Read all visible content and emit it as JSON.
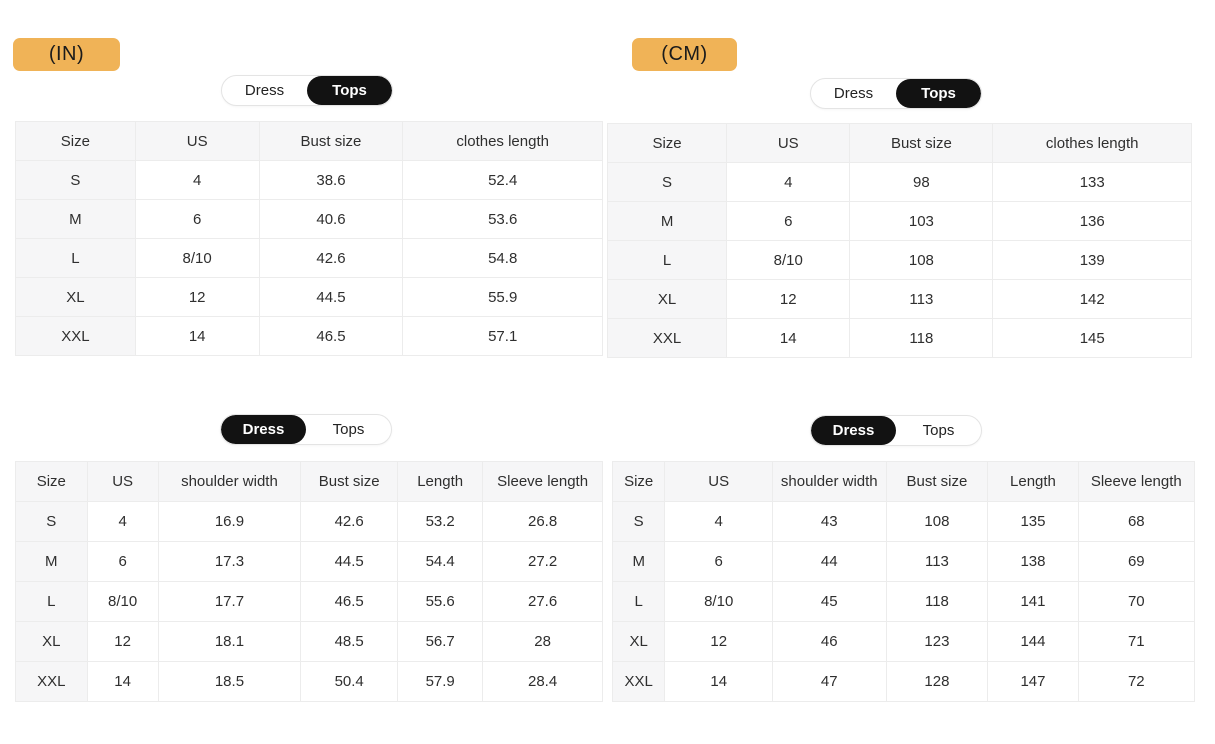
{
  "badges": {
    "in_label": "(IN)",
    "cm_label": "(CM)",
    "bg_color": "#F0B357"
  },
  "toggle": {
    "dress_label": "Dress",
    "tops_label": "Tops",
    "selected_bg": "#121212"
  },
  "sections": {
    "in_tops": {
      "unit": "(IN)",
      "selected_tab": "Tops",
      "table": {
        "headers": [
          "Size",
          "US",
          "Bust size",
          "clothes length"
        ],
        "rows": [
          [
            "S",
            "4",
            "38.6",
            "52.4"
          ],
          [
            "M",
            "6",
            "40.6",
            "53.6"
          ],
          [
            "L",
            "8/10",
            "42.6",
            "54.8"
          ],
          [
            "XL",
            "12",
            "44.5",
            "55.9"
          ],
          [
            "XXL",
            "14",
            "46.5",
            "57.1"
          ]
        ]
      }
    },
    "cm_tops": {
      "unit": "(CM)",
      "selected_tab": "Tops",
      "table": {
        "headers": [
          "Size",
          "US",
          "Bust size",
          "clothes length"
        ],
        "rows": [
          [
            "S",
            "4",
            "98",
            "133"
          ],
          [
            "M",
            "6",
            "103",
            "136"
          ],
          [
            "L",
            "8/10",
            "108",
            "139"
          ],
          [
            "XL",
            "12",
            "113",
            "142"
          ],
          [
            "XXL",
            "14",
            "118",
            "145"
          ]
        ]
      }
    },
    "in_dress": {
      "unit": "(IN)",
      "selected_tab": "Dress",
      "table": {
        "headers": [
          "Size",
          "US",
          "shoulder width",
          "Bust size",
          "Length",
          "Sleeve length"
        ],
        "rows": [
          [
            "S",
            "4",
            "16.9",
            "42.6",
            "53.2",
            "26.8"
          ],
          [
            "M",
            "6",
            "17.3",
            "44.5",
            "54.4",
            "27.2"
          ],
          [
            "L",
            "8/10",
            "17.7",
            "46.5",
            "55.6",
            "27.6"
          ],
          [
            "XL",
            "12",
            "18.1",
            "48.5",
            "56.7",
            "28"
          ],
          [
            "XXL",
            "14",
            "18.5",
            "50.4",
            "57.9",
            "28.4"
          ]
        ]
      }
    },
    "cm_dress": {
      "unit": "(CM)",
      "selected_tab": "Dress",
      "table": {
        "headers": [
          "Size",
          "US",
          "shoulder width",
          "Bust size",
          "Length",
          "Sleeve length"
        ],
        "rows": [
          [
            "S",
            "4",
            "43",
            "108",
            "135",
            "68"
          ],
          [
            "M",
            "6",
            "44",
            "113",
            "138",
            "69"
          ],
          [
            "L",
            "8/10",
            "45",
            "118",
            "141",
            "70"
          ],
          [
            "XL",
            "12",
            "46",
            "123",
            "144",
            "71"
          ],
          [
            "XXL",
            "14",
            "47",
            "128",
            "147",
            "72"
          ]
        ]
      }
    }
  }
}
